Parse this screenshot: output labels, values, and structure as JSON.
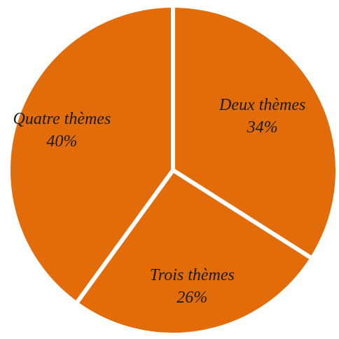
{
  "chart_data": {
    "type": "pie",
    "title": "",
    "slices": [
      {
        "name": "Deux thèmes",
        "value": 34,
        "label": "34%"
      },
      {
        "name": "Trois thèmes",
        "value": 26,
        "label": "26%"
      },
      {
        "name": "Quatre thèmes",
        "value": 40,
        "label": "40%"
      }
    ],
    "start": "12 o'clock",
    "direction": "clockwise",
    "legend": "none",
    "colors": {
      "slice": "#E36C0A",
      "separator": "#FFFFFF",
      "label_text": "#1A1A1A"
    }
  }
}
